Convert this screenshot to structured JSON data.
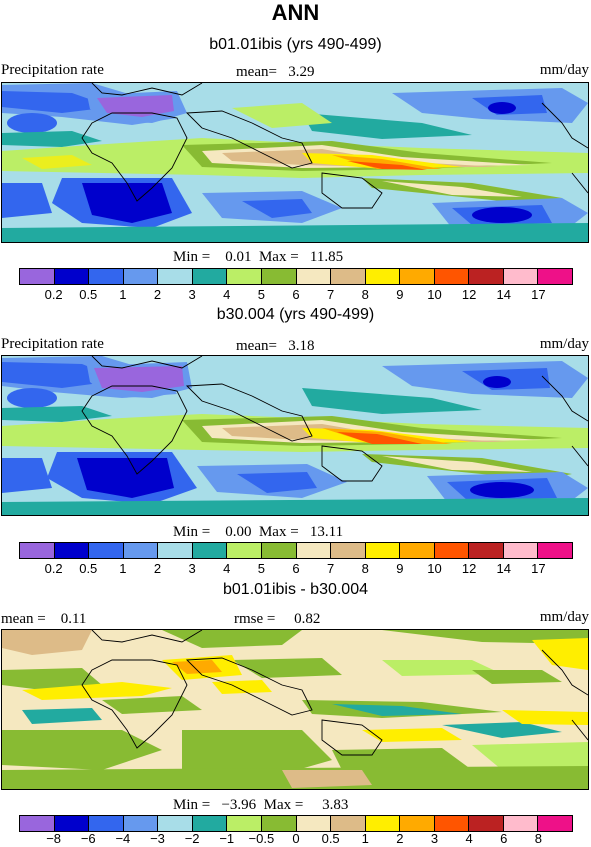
{
  "page": {
    "title": "ANN",
    "colors": [
      "#9966dd",
      "#0000cc",
      "#3366ee",
      "#6699ee",
      "#a8dde8",
      "#22aaa0",
      "#bbee66",
      "#88bb33",
      "#f5e8c0",
      "#ddbb88",
      "#ffee00",
      "#ffaa00",
      "#ff5500",
      "#bb2222",
      "#ffbbcc",
      "#ee1188"
    ]
  },
  "panel1": {
    "subtitle": "b01.01ibis (yrs 490-499)",
    "left_label": "Precipitation rate",
    "center_label": "mean=   3.29",
    "units": "mm/day",
    "minmax": "Min =    0.01  Max =   11.85",
    "ticks": [
      "0.2",
      "0.5",
      "1",
      "2",
      "3",
      "4",
      "5",
      "6",
      "7",
      "8",
      "9",
      "10",
      "12",
      "14",
      "17"
    ]
  },
  "panel2": {
    "subtitle": "b30.004 (yrs 490-499)",
    "left_label": "Precipitation rate",
    "center_label": "mean=   3.18",
    "units": "mm/day",
    "minmax": "Min =    0.00  Max =   13.11",
    "ticks": [
      "0.2",
      "0.5",
      "1",
      "2",
      "3",
      "4",
      "5",
      "6",
      "7",
      "8",
      "9",
      "10",
      "12",
      "14",
      "17"
    ]
  },
  "panel3": {
    "subtitle": "b01.01ibis - b30.004",
    "mean_label": "mean =    0.11",
    "rmse_label": "rmse =     0.82",
    "units": "mm/day",
    "minmax": "Min =   −3.96  Max =     3.83",
    "ticks": [
      "−8",
      "−6",
      "−4",
      "−3",
      "−2",
      "−1",
      "−0.5",
      "0",
      "0.5",
      "1",
      "2",
      "3",
      "4",
      "6",
      "8"
    ]
  }
}
